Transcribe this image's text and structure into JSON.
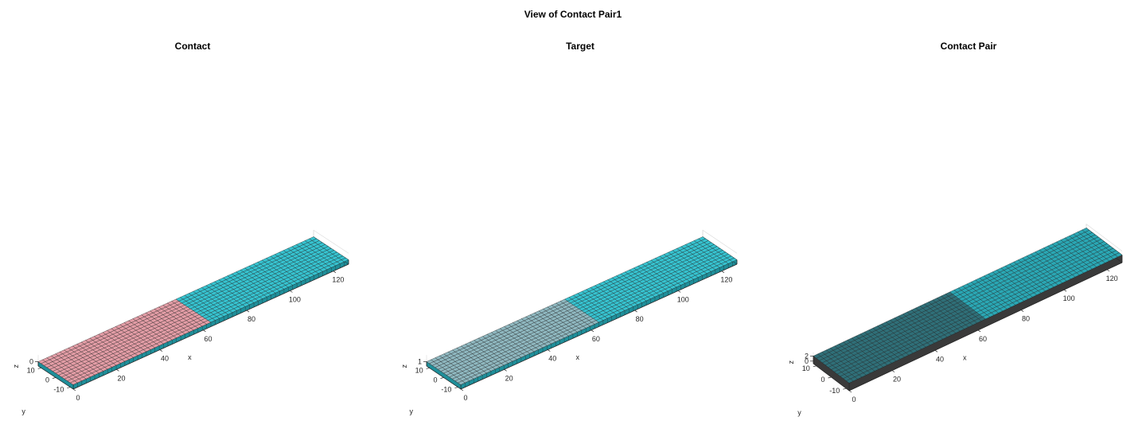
{
  "figure": {
    "title": "View of Contact Pair1"
  },
  "colors": {
    "cyan": "#36c3d0",
    "cyan_side": "#1f8f9a",
    "contact": "#e39da6",
    "target_overlay": "#8fb8c0",
    "dark": "#3a3a3a",
    "mesh_line": "#1f1f1f",
    "grid": "#d9d9d9"
  },
  "chart_data": [
    {
      "type": "surface-mesh-3d",
      "title": "Contact",
      "xlabel": "x",
      "ylabel": "y",
      "zlabel": "z",
      "xticks": [
        "0",
        "20",
        "40",
        "60",
        "80",
        "100",
        "120"
      ],
      "yticks": [
        "-10",
        "0",
        "10"
      ],
      "zticks": [
        "0"
      ],
      "xlim": [
        0,
        127
      ],
      "ylim": [
        -12,
        12
      ],
      "zlim": [
        -1,
        0
      ],
      "plate": {
        "x": [
          0,
          127
        ],
        "y": [
          -12,
          12
        ],
        "z": [
          -1,
          0
        ],
        "nx": 64,
        "ny": 12
      },
      "highlight": {
        "region": "contact",
        "x": [
          0,
          63.5
        ]
      },
      "grid": true
    },
    {
      "type": "surface-mesh-3d",
      "title": "Target",
      "xlabel": "x",
      "ylabel": "y",
      "zlabel": "z",
      "xticks": [
        "0",
        "20",
        "40",
        "60",
        "80",
        "100",
        "120"
      ],
      "yticks": [
        "-10",
        "0",
        "10"
      ],
      "zticks": [
        "1"
      ],
      "xlim": [
        0,
        127
      ],
      "ylim": [
        -12,
        12
      ],
      "zlim": [
        0,
        1
      ],
      "plate": {
        "x": [
          0,
          127
        ],
        "y": [
          -12,
          12
        ],
        "z": [
          0,
          1
        ],
        "nx": 64,
        "ny": 12
      },
      "highlight": {
        "region": "target",
        "x": [
          0,
          63.5
        ]
      },
      "grid": true
    },
    {
      "type": "surface-mesh-3d",
      "title": "Contact Pair",
      "xlabel": "x",
      "ylabel": "y",
      "zlabel": "z",
      "xticks": [
        "0",
        "20",
        "40",
        "60",
        "80",
        "100",
        "120"
      ],
      "yticks": [
        "-10",
        "0",
        "10"
      ],
      "zticks": [
        "0",
        "2"
      ],
      "xlim": [
        0,
        127
      ],
      "ylim": [
        -12,
        12
      ],
      "zlim": [
        -1,
        2
      ],
      "plate": {
        "x": [
          0,
          127
        ],
        "y": [
          -12,
          12
        ],
        "z": [
          -1,
          2
        ],
        "nx": 64,
        "ny": 12
      },
      "highlight": {
        "region": "pair",
        "x": [
          0,
          63.5
        ]
      },
      "grid": true
    }
  ]
}
